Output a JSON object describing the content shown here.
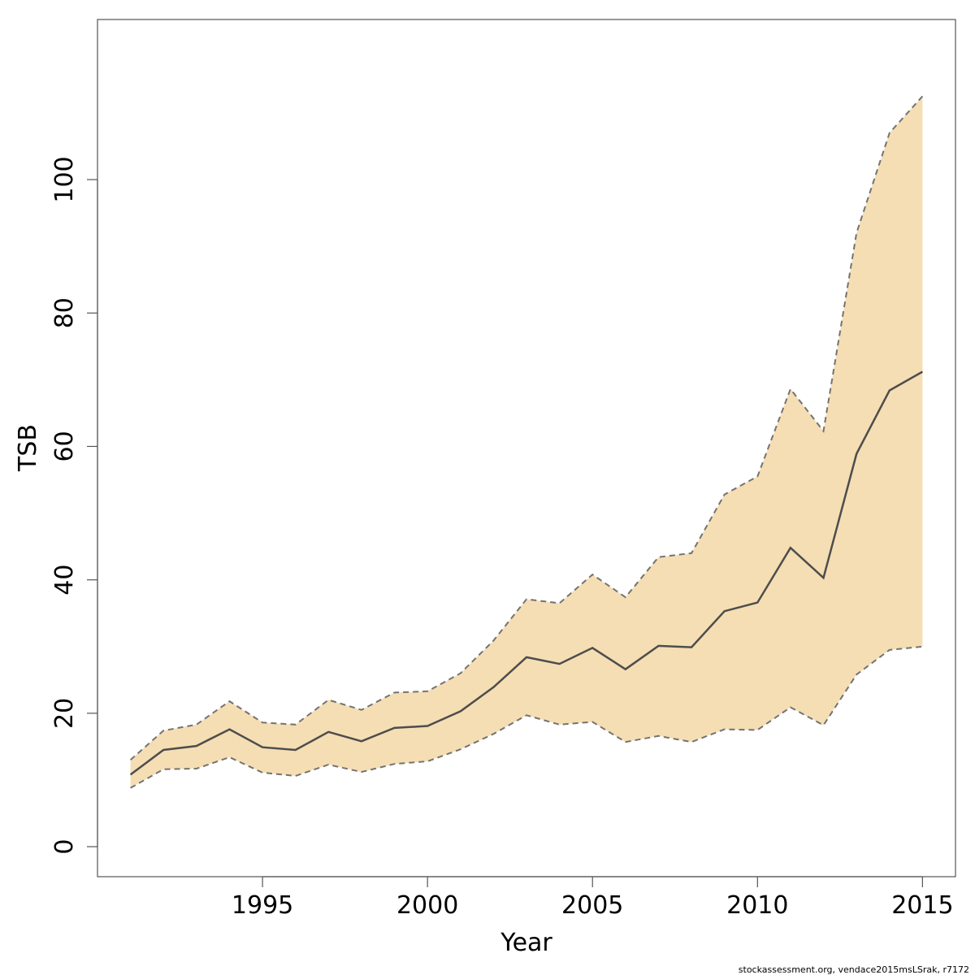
{
  "chart_data": {
    "type": "area",
    "xlabel": "Year",
    "ylabel": "TSB",
    "xlim": [
      1990,
      2016
    ],
    "ylim": [
      -4.5,
      124
    ],
    "x_ticks": [
      1995,
      2000,
      2005,
      2010,
      2015
    ],
    "y_ticks": [
      0,
      20,
      40,
      60,
      80,
      100
    ],
    "x_tick_labels": [
      "1995",
      "2000",
      "2005",
      "2010",
      "2015"
    ],
    "y_tick_labels": [
      "0",
      "20",
      "40",
      "60",
      "80",
      "100"
    ],
    "x": [
      1991,
      1992,
      1993,
      1994,
      1995,
      1996,
      1997,
      1998,
      1999,
      2000,
      2001,
      2002,
      2003,
      2004,
      2005,
      2006,
      2007,
      2008,
      2009,
      2010,
      2011,
      2012,
      2013,
      2014,
      2015
    ],
    "series": [
      {
        "role": "estimate",
        "values": [
          10.8,
          14.5,
          15.1,
          17.6,
          14.9,
          14.5,
          17.2,
          15.8,
          17.8,
          18.1,
          20.3,
          23.9,
          28.4,
          27.4,
          29.8,
          26.6,
          30.1,
          29.9,
          35.3,
          36.6,
          44.8,
          40.3,
          58.9,
          68.4,
          71.2
        ]
      },
      {
        "role": "upper",
        "values": [
          13.0,
          17.4,
          18.3,
          21.8,
          18.6,
          18.3,
          22.0,
          20.5,
          23.1,
          23.3,
          26.0,
          30.9,
          37.1,
          36.5,
          40.8,
          37.4,
          43.4,
          44.0,
          52.8,
          55.5,
          68.6,
          62.3,
          92.0,
          107.0,
          112.5
        ]
      },
      {
        "role": "lower",
        "values": [
          8.8,
          11.6,
          11.7,
          13.4,
          11.1,
          10.6,
          12.3,
          11.2,
          12.4,
          12.8,
          14.6,
          16.9,
          19.7,
          18.3,
          18.7,
          15.7,
          16.6,
          15.7,
          17.6,
          17.5,
          20.9,
          18.2,
          25.8,
          29.5,
          30.0
        ]
      }
    ],
    "colors": {
      "band_fill": "#f5deb3",
      "band_edge": "#737373",
      "estimate_line": "#4d4d4d",
      "frame": "#555555"
    },
    "grid": false,
    "legend": "none"
  },
  "footer": {
    "credit": "stockassessment.org, vendace2015msLSrak, r7172"
  }
}
